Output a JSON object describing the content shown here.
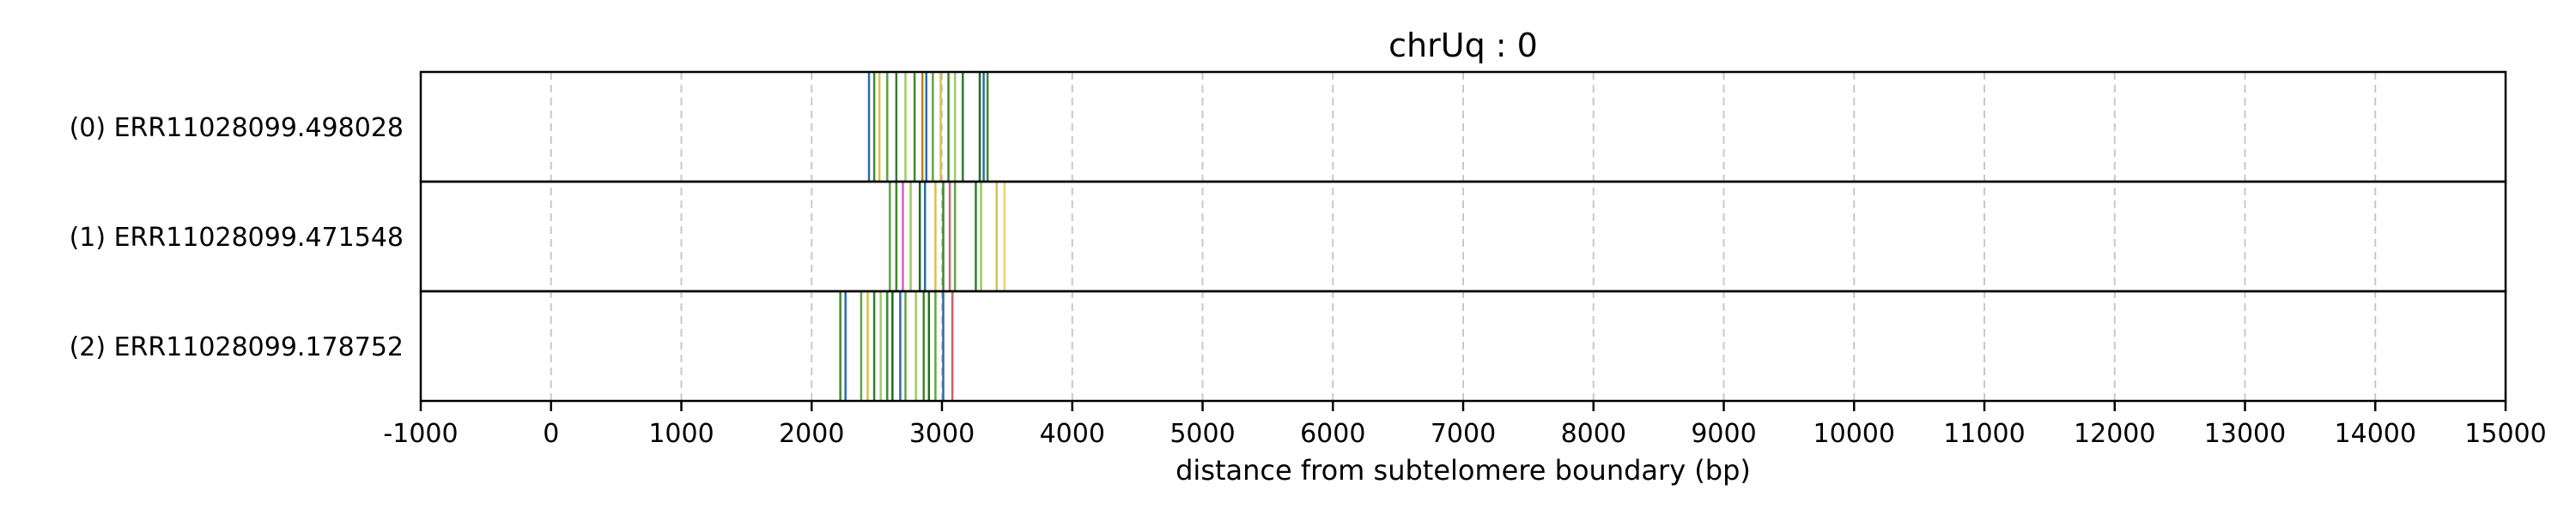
{
  "chart_data": {
    "type": "event-track",
    "title": "chrUq : 0",
    "xlabel": "distance from subtelomere boundary (bp)",
    "xlim": [
      -1000,
      15000
    ],
    "xticks": [
      -1000,
      0,
      1000,
      2000,
      3000,
      4000,
      5000,
      6000,
      7000,
      8000,
      9000,
      10000,
      11000,
      12000,
      13000,
      14000,
      15000
    ],
    "xtick_labels": [
      "-1000",
      "0",
      "1000",
      "2000",
      "3000",
      "4000",
      "5000",
      "6000",
      "7000",
      "8000",
      "9000",
      "10000",
      "11000",
      "12000",
      "13000",
      "14000",
      "15000"
    ],
    "grid": "vertical dashed",
    "tracks": [
      {
        "label": "(0) ERR11028099.498028",
        "events": [
          {
            "x": 2440,
            "color": "#2e6aa8"
          },
          {
            "x": 2480,
            "color": "#3d8a2a"
          },
          {
            "x": 2520,
            "color": "#d9c24a"
          },
          {
            "x": 2580,
            "color": "#5fa544"
          },
          {
            "x": 2650,
            "color": "#2e7d32"
          },
          {
            "x": 2720,
            "color": "#9acd62"
          },
          {
            "x": 2790,
            "color": "#3d8a2a"
          },
          {
            "x": 2850,
            "color": "#b8860b"
          },
          {
            "x": 2880,
            "color": "#2e6aa8"
          },
          {
            "x": 2930,
            "color": "#5fa544"
          },
          {
            "x": 2990,
            "color": "#d9c24a"
          },
          {
            "x": 3050,
            "color": "#3d8a2a"
          },
          {
            "x": 3100,
            "color": "#9acd62"
          },
          {
            "x": 3160,
            "color": "#2e7d32"
          },
          {
            "x": 3290,
            "color": "#1f6b1f"
          },
          {
            "x": 3320,
            "color": "#2e6aa8"
          },
          {
            "x": 3350,
            "color": "#3d8a2a"
          }
        ]
      },
      {
        "label": "(1) ERR11028099.471548",
        "events": [
          {
            "x": 2600,
            "color": "#5fa544"
          },
          {
            "x": 2650,
            "color": "#3d8a2a"
          },
          {
            "x": 2700,
            "color": "#d45ec9"
          },
          {
            "x": 2760,
            "color": "#9acd62"
          },
          {
            "x": 2830,
            "color": "#1f6b1f"
          },
          {
            "x": 2870,
            "color": "#2e6aa8"
          },
          {
            "x": 2950,
            "color": "#d9c24a"
          },
          {
            "x": 3010,
            "color": "#3d8a2a"
          },
          {
            "x": 3060,
            "color": "#d45e8a"
          },
          {
            "x": 3100,
            "color": "#5fa544"
          },
          {
            "x": 3260,
            "color": "#2e7d32"
          },
          {
            "x": 3300,
            "color": "#9acd62"
          },
          {
            "x": 3420,
            "color": "#d9c24a"
          },
          {
            "x": 3480,
            "color": "#e8d66a"
          }
        ]
      },
      {
        "label": "(2) ERR11028099.178752",
        "events": [
          {
            "x": 2220,
            "color": "#3d8a2a"
          },
          {
            "x": 2260,
            "color": "#2e6aa8"
          },
          {
            "x": 2380,
            "color": "#5fa544"
          },
          {
            "x": 2430,
            "color": "#d9c24a"
          },
          {
            "x": 2480,
            "color": "#2e7d32"
          },
          {
            "x": 2530,
            "color": "#9acd62"
          },
          {
            "x": 2580,
            "color": "#3d8a2a"
          },
          {
            "x": 2620,
            "color": "#1f6b1f"
          },
          {
            "x": 2680,
            "color": "#2e6aa8"
          },
          {
            "x": 2720,
            "color": "#5fa544"
          },
          {
            "x": 2800,
            "color": "#9acd62"
          },
          {
            "x": 2860,
            "color": "#3d8a2a"
          },
          {
            "x": 2900,
            "color": "#1f6b1f"
          },
          {
            "x": 2950,
            "color": "#5fa544"
          },
          {
            "x": 3010,
            "color": "#2e6aa8"
          },
          {
            "x": 3080,
            "color": "#d45e6a"
          }
        ]
      }
    ]
  }
}
